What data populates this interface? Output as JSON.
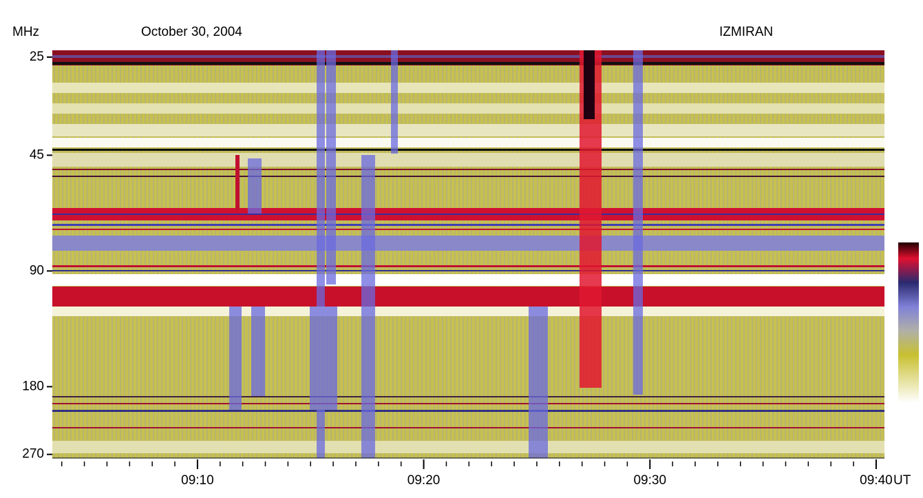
{
  "chart_data": {
    "type": "spectrogram",
    "title": "October 30, 2004",
    "source": "IZMIRAN",
    "y_label": "MHz",
    "x_label": "UT",
    "log_y": true,
    "ylim": [
      24,
      276
    ],
    "yticks": [
      25,
      45,
      90,
      180,
      270
    ],
    "xlim": [
      "09:03:35",
      "09:40:22"
    ],
    "xticks": [
      "09:10",
      "09:20",
      "09:30",
      "09:40"
    ],
    "xminorticks": [
      "09:04",
      "09:05",
      "09:06",
      "09:07",
      "09:08",
      "09:09",
      "09:11",
      "09:12",
      "09:13",
      "09:14",
      "09:15",
      "09:16",
      "09:17",
      "09:18",
      "09:19",
      "09:21",
      "09:22",
      "09:23",
      "09:24",
      "09:25",
      "09:26",
      "09:27",
      "09:28",
      "09:29",
      "09:31",
      "09:32",
      "09:33",
      "09:34",
      "09:35",
      "09:36",
      "09:37",
      "09:38",
      "09:39"
    ]
  }
}
